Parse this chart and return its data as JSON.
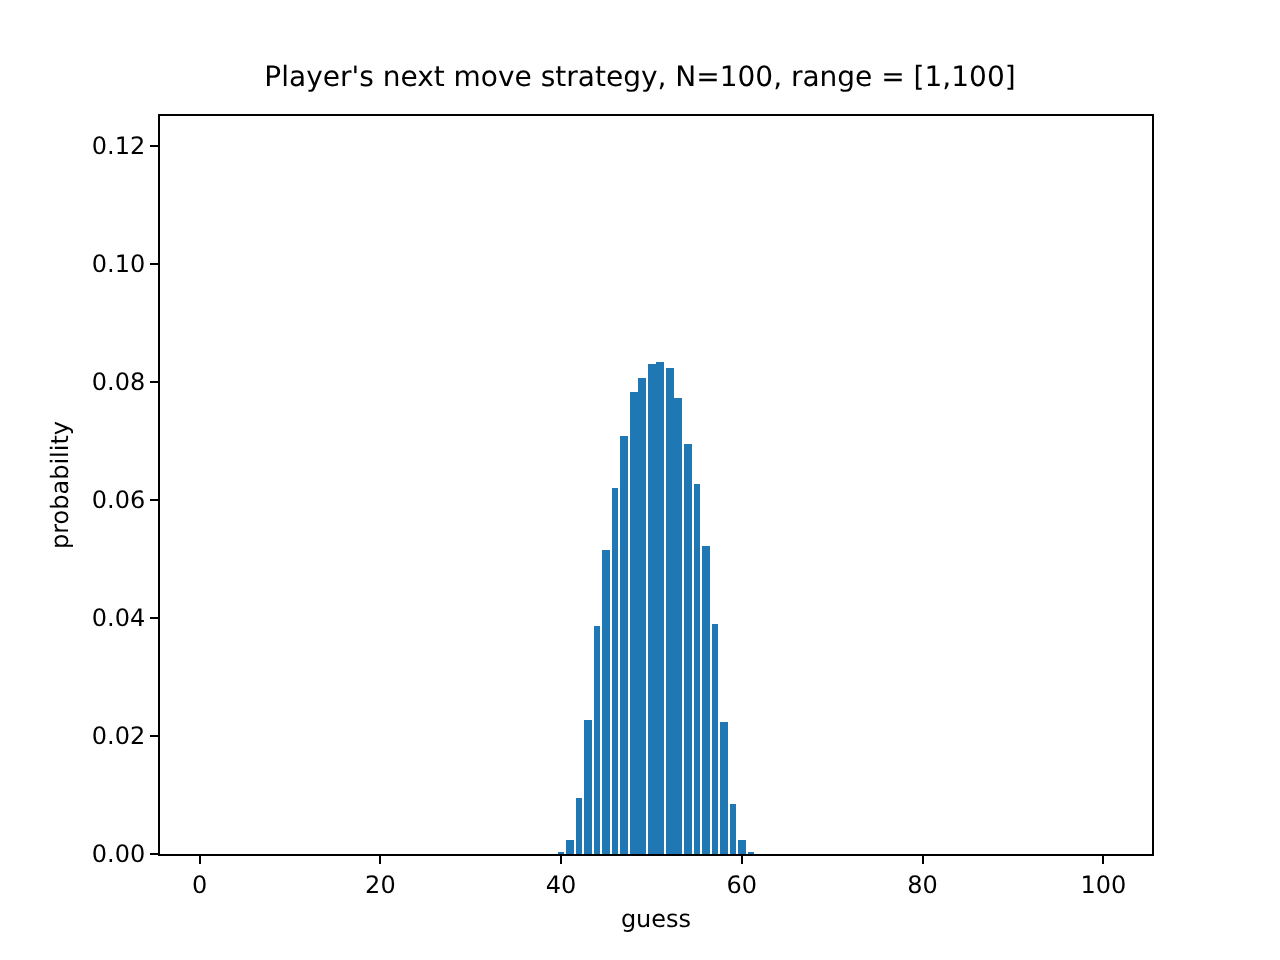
{
  "chart_data": {
    "type": "bar",
    "title": "Player's next move strategy, N=100, range = [1,100]",
    "xlabel": "guess",
    "ylabel": "probability",
    "x": [
      40,
      41,
      42,
      43,
      44,
      45,
      46,
      47,
      48,
      49,
      50,
      51,
      52,
      53,
      54,
      55,
      56,
      57,
      58,
      59,
      60,
      61
    ],
    "values": [
      0.0003,
      0.0025,
      0.0095,
      0.0227,
      0.0386,
      0.0515,
      0.062,
      0.0708,
      0.0783,
      0.0807,
      0.0829,
      0.0833,
      0.0824,
      0.0773,
      0.0695,
      0.0627,
      0.0522,
      0.039,
      0.0224,
      0.0085,
      0.0024,
      0.0003
    ],
    "color": "#1f77b4",
    "xlim": [
      -4.39,
      105.39
    ],
    "xticks": [
      0,
      20,
      40,
      60,
      80,
      100
    ],
    "ylim": [
      0,
      0.125
    ],
    "yticks": [
      {
        "value": 0,
        "label": "0.00"
      },
      {
        "value": 0.02,
        "label": "0.02"
      },
      {
        "value": 0.04,
        "label": "0.04"
      },
      {
        "value": 0.06,
        "label": "0.06"
      },
      {
        "value": 0.08,
        "label": "0.08"
      },
      {
        "value": 0.1,
        "label": "0.10"
      },
      {
        "value": 0.12,
        "label": "0.12"
      }
    ],
    "legend": false
  }
}
